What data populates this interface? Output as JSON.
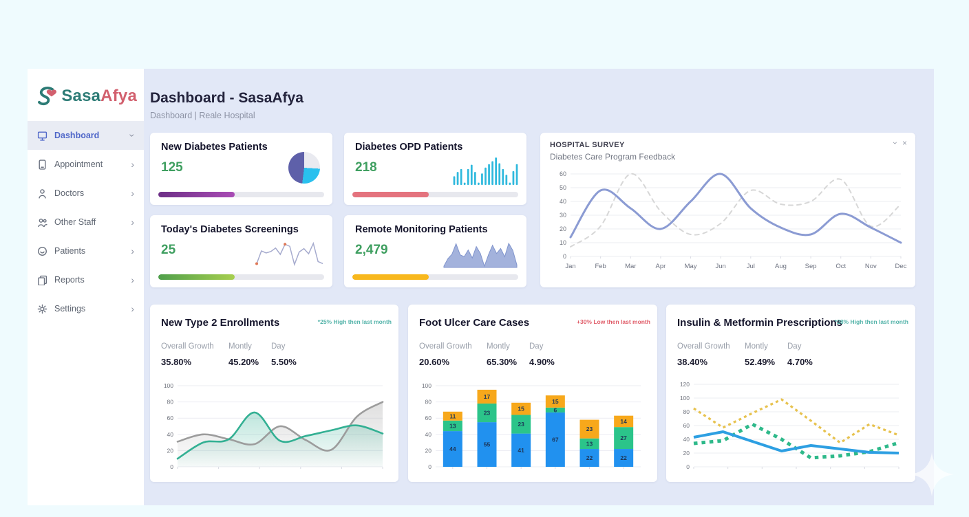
{
  "header": {
    "title": "Dashboard - SasaAfya",
    "breadcrumb": "Dashboard | Reale Hospital"
  },
  "brand": {
    "part1": "Sasa",
    "part2": "Afya",
    "color1": "#2c7b75",
    "color2": "#d2606e"
  },
  "sidebar": {
    "items": [
      {
        "label": "Dashboard",
        "icon": "dashboard-icon",
        "active": true,
        "chevron": "down"
      },
      {
        "label": "Appointment",
        "icon": "appointment-icon",
        "active": false,
        "chevron": "right"
      },
      {
        "label": "Doctors",
        "icon": "doctor-icon",
        "active": false,
        "chevron": "right"
      },
      {
        "label": "Other Staff",
        "icon": "staff-icon",
        "active": false,
        "chevron": "right"
      },
      {
        "label": "Patients",
        "icon": "patients-icon",
        "active": false,
        "chevron": "right"
      },
      {
        "label": "Reports",
        "icon": "reports-icon",
        "active": false,
        "chevron": "right"
      },
      {
        "label": "Settings",
        "icon": "settings-icon",
        "active": false,
        "chevron": "right"
      }
    ]
  },
  "kpis": [
    {
      "title": "New Diabetes Patients",
      "value": "125",
      "viz": "pie",
      "pie_slices": [
        {
          "color": "#e9eaf0",
          "pct": 26
        },
        {
          "color": "#29c0ee",
          "pct": 26
        },
        {
          "color": "#5e60a9",
          "pct": 48
        }
      ],
      "progress": {
        "pct": 46,
        "colors": [
          "#6d2f86",
          "#a94cb5"
        ]
      }
    },
    {
      "title": "Diabetes OPD Patients",
      "value": "218",
      "viz": "bars",
      "spark": [
        30,
        45,
        55,
        8,
        55,
        70,
        45,
        8,
        40,
        60,
        72,
        82,
        95,
        75,
        55,
        35,
        8,
        48,
        72
      ],
      "spark_color": "#2fb9dd",
      "progress": {
        "pct": 46,
        "colors": [
          "#e4737e"
        ]
      }
    },
    {
      "title": "Today's Diabetes Screenings",
      "value": "25",
      "viz": "line",
      "spark": [
        18,
        62,
        55,
        60,
        72,
        50,
        85,
        78,
        15,
        58,
        70,
        52,
        88,
        25,
        18
      ],
      "spark_color": "#a6abce",
      "dot_color": "#e07856",
      "dot_indices": [
        0,
        6
      ],
      "progress": {
        "pct": 46,
        "colors": [
          "#4f9f4b",
          "#a7cf4f"
        ]
      }
    },
    {
      "title": "Remote Monitoring Patients",
      "value": "2,479",
      "viz": "area",
      "spark": [
        4,
        28,
        42,
        75,
        40,
        34,
        55,
        30,
        66,
        44,
        4,
        40,
        70,
        44,
        60,
        34,
        76,
        54,
        8
      ],
      "spark_color": "#93a4d6",
      "progress": {
        "pct": 46,
        "colors": [
          "#f8b81d"
        ]
      }
    }
  ],
  "survey": {
    "title": "HOSPITAL SURVEY",
    "subtitle": "Diabetes Care Program Feedback",
    "controls": {
      "collapse": "›",
      "close": "×"
    }
  },
  "panels": [
    {
      "title": "New Type 2 Enrollments",
      "badge": "*25% High then last month",
      "badge_color": "#53b3a9",
      "stats": [
        {
          "label": "Overall Growth",
          "value": "35.80%"
        },
        {
          "label": "Montly",
          "value": "45.20%"
        },
        {
          "label": "Day",
          "value": "5.50%"
        }
      ]
    },
    {
      "title": "Foot Ulcer Care Cases",
      "badge": "+30% Low then last month",
      "badge_color": "#e05c68",
      "stats": [
        {
          "label": "Overall Growth",
          "value": "20.60%"
        },
        {
          "label": "Montly",
          "value": "65.30%"
        },
        {
          "label": "Day",
          "value": "4.90%"
        }
      ]
    },
    {
      "title": "Insulin & Metformin Prescriptions",
      "badge": "*28% High then last month",
      "badge_color": "#53b3a9",
      "stats": [
        {
          "label": "Overall Growth",
          "value": "38.40%"
        },
        {
          "label": "Montly",
          "value": "52.49%"
        },
        {
          "label": "Day",
          "value": "4.70%"
        }
      ]
    }
  ],
  "chart_data": [
    {
      "id": "survey",
      "type": "line",
      "title": "Diabetes Care Program Feedback",
      "x": [
        "Jan",
        "Feb",
        "Mar",
        "Apr",
        "May",
        "Jun",
        "Jul",
        "Aug",
        "Sep",
        "Oct",
        "Nov",
        "Dec"
      ],
      "ylim": [
        0,
        60
      ],
      "yticks": [
        0,
        10,
        20,
        30,
        40,
        50,
        60
      ],
      "grid": true,
      "legend": "none",
      "series": [
        {
          "name": "feedback-primary",
          "style": "solid",
          "color": "#8b9bd3",
          "width": 3,
          "values": [
            14,
            48,
            35,
            20,
            40,
            60,
            35,
            21,
            16,
            31,
            21,
            10
          ]
        },
        {
          "name": "feedback-secondary",
          "style": "dashed",
          "color": "#d7d7d7",
          "width": 2,
          "values": [
            7,
            22,
            60,
            33,
            16,
            24,
            48,
            38,
            40,
            56,
            22,
            38
          ]
        }
      ]
    },
    {
      "id": "enrollments",
      "type": "area",
      "title": "New Type 2 Enrollments",
      "ylim": [
        0,
        100
      ],
      "yticks": [
        0,
        20,
        40,
        60,
        80,
        100
      ],
      "grid": true,
      "legend": "none",
      "series": [
        {
          "name": "gray-series",
          "color": "#9c9c9c",
          "values": [
            31,
            40,
            34,
            28,
            50,
            33,
            21,
            62,
            80
          ]
        },
        {
          "name": "teal-series",
          "color": "#33b093",
          "values": [
            10,
            30,
            34,
            67,
            32,
            38,
            45,
            51,
            41
          ]
        }
      ]
    },
    {
      "id": "footulcer",
      "type": "bar",
      "title": "Foot Ulcer Care Cases",
      "stacked": true,
      "ylim": [
        0,
        100
      ],
      "yticks": [
        0,
        20,
        40,
        60,
        80,
        100
      ],
      "grid": true,
      "legend": "none",
      "segment_colors": [
        "#2191ef",
        "#2bc48a",
        "#f7a81b"
      ],
      "bars": [
        [
          44,
          13,
          11
        ],
        [
          55,
          23,
          17
        ],
        [
          41,
          23,
          15
        ],
        [
          67,
          6,
          15
        ],
        [
          22,
          13,
          23
        ],
        [
          22,
          27,
          14
        ]
      ]
    },
    {
      "id": "insulin",
      "type": "line",
      "title": "Insulin & Metformin Prescriptions",
      "ylim": [
        0,
        120
      ],
      "yticks": [
        0,
        20,
        40,
        60,
        80,
        100,
        120
      ],
      "grid": true,
      "legend": "none",
      "series": [
        {
          "name": "yellow-dotted",
          "style": "dotted",
          "color": "#e7c24e",
          "width": 3.2,
          "values": [
            85,
            57,
            78,
            98,
            67,
            35,
            62,
            46
          ]
        },
        {
          "name": "green-dotted",
          "style": "dotted-thick",
          "color": "#2eb98a",
          "width": 5,
          "values": [
            34,
            38,
            62,
            40,
            13,
            16,
            22,
            35
          ]
        },
        {
          "name": "blue-solid",
          "style": "solid",
          "color": "#2d9fe2",
          "width": 4,
          "values": [
            43,
            51,
            37,
            23,
            31,
            26,
            21,
            20
          ]
        }
      ]
    }
  ]
}
